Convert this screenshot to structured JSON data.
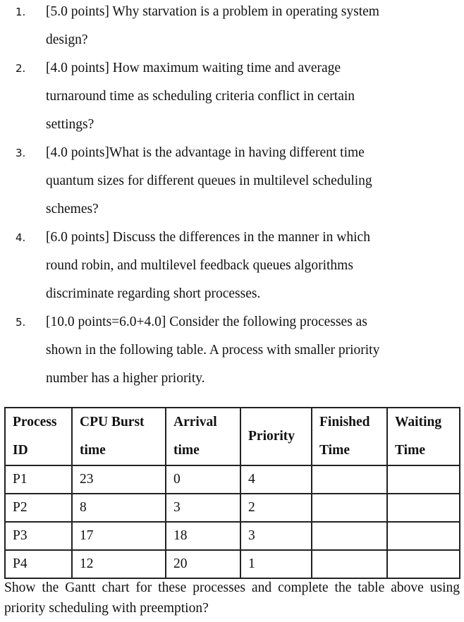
{
  "questions": [
    {
      "number": "1.",
      "lines": [
        "[5.0 points] Why starvation is a problem in operating system",
        "design?"
      ]
    },
    {
      "number": "2.",
      "lines": [
        "[4.0 points] How maximum waiting time and average",
        "turnaround time as scheduling criteria conflict in certain",
        "settings?"
      ]
    },
    {
      "number": "3.",
      "lines": [
        "[4.0 points]What is the advantage in having different time",
        "quantum sizes for different queues in multilevel scheduling",
        "schemes?"
      ]
    },
    {
      "number": "4.",
      "lines": [
        "[6.0 points] Discuss the differences in the manner in which",
        "round robin, and multilevel feedback queues algorithms",
        "discriminate regarding short processes."
      ]
    },
    {
      "number": "5.",
      "lines": [
        "[10.0 points=6.0+4.0] Consider the following processes as",
        "shown in the following table. A process with smaller priority",
        "number has a higher priority."
      ]
    }
  ],
  "table": {
    "headers": [
      [
        "Process",
        "ID"
      ],
      [
        "CPU Burst",
        "time"
      ],
      [
        "Arrival",
        "time"
      ],
      [
        "Priority"
      ],
      [
        "Finished",
        "Time"
      ],
      [
        "Waiting",
        "Time"
      ]
    ],
    "rows": [
      [
        "P1",
        "23",
        "0",
        "4",
        "",
        ""
      ],
      [
        "P2",
        "8",
        "3",
        "2",
        "",
        ""
      ],
      [
        "P3",
        "17",
        "18",
        "3",
        "",
        ""
      ],
      [
        "P4",
        "12",
        "20",
        "1",
        "",
        ""
      ]
    ]
  },
  "footer": "Show the Gantt chart for these processes and complete the table above using priority scheduling with preemption?"
}
